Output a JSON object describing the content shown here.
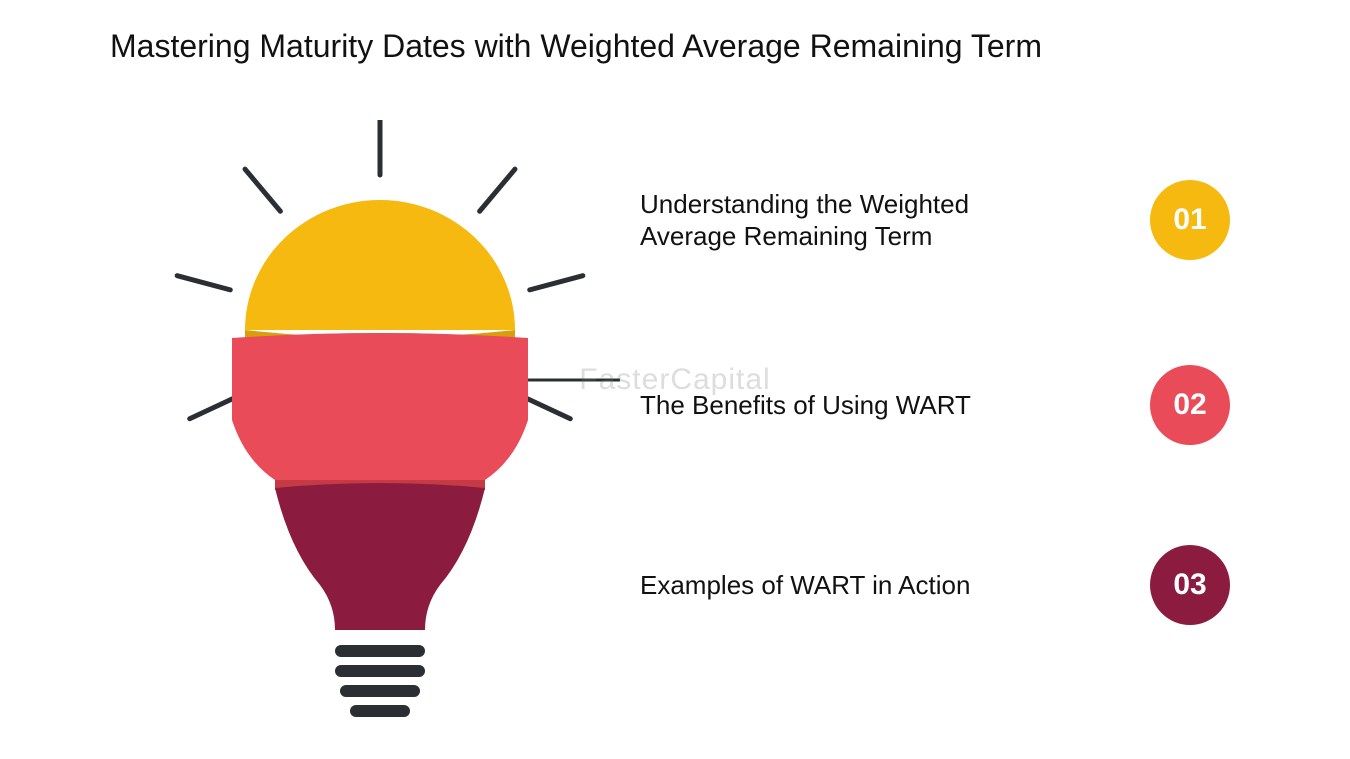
{
  "title": "Mastering Maturity Dates with Weighted Average Remaining Term",
  "watermark": "FasterCapital",
  "colors": {
    "yellow": "#f5b90f",
    "red": "#e94b58",
    "maroon": "#8c1c3f",
    "ray": "#2b2f33",
    "base": "#2b2f33",
    "white": "#ffffff"
  },
  "bulb": {
    "segments": [
      {
        "color": "#f5b90f",
        "shadow": "#d99f0a"
      },
      {
        "color": "#e94b58",
        "shadow": "#c63a45"
      },
      {
        "color": "#8c1c3f",
        "shadow": "#6d1531"
      }
    ],
    "ray_width": 5,
    "ray_length": 55
  },
  "items": [
    {
      "num": "01",
      "label": "Understanding the Weighted Average Remaining Term",
      "color": "#f5b90f"
    },
    {
      "num": "02",
      "label": "The Benefits of Using WART",
      "color": "#e94b58"
    },
    {
      "num": "03",
      "label": "Examples of WART in Action",
      "color": "#8c1c3f"
    }
  ]
}
